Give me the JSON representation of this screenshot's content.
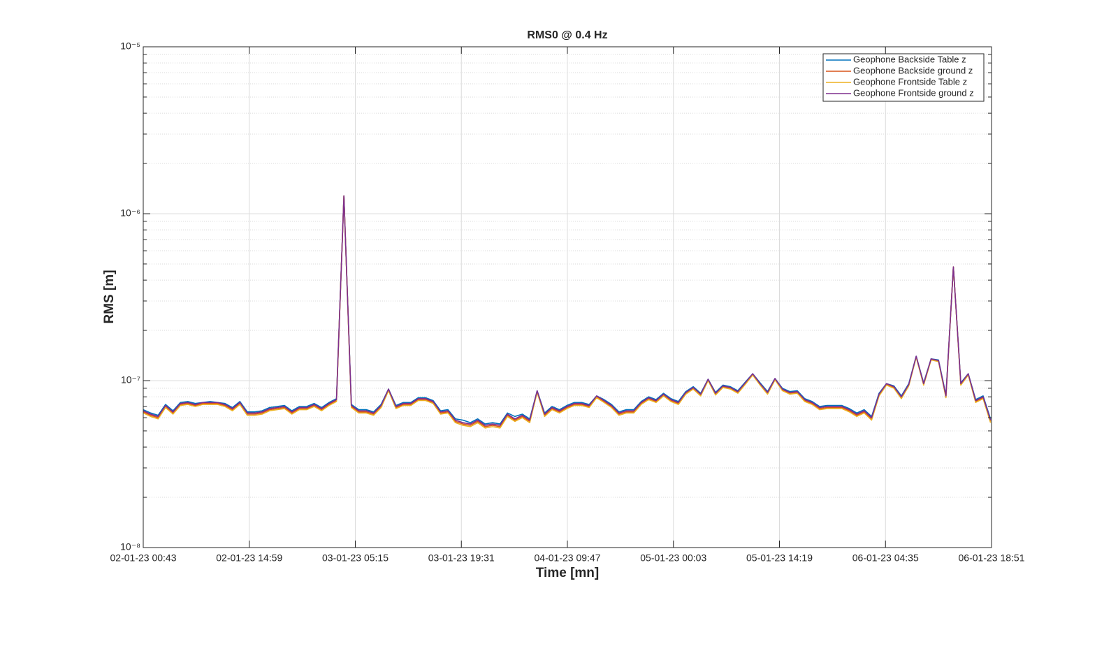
{
  "chart_data": {
    "type": "line",
    "title": "RMS0 @ 0.4 Hz",
    "xlabel": "Time [mn]",
    "ylabel": "RMS [m]",
    "log_y": true,
    "grid": true,
    "minor_grid": true,
    "legend": "northeast",
    "xlim": [
      0,
      6848
    ],
    "ylim": [
      1e-08,
      1e-05
    ],
    "xticks": [
      {
        "value": 0,
        "label": "02-01-23 00:43"
      },
      {
        "value": 856,
        "label": "02-01-23 14:59"
      },
      {
        "value": 1712,
        "label": "03-01-23 05:15"
      },
      {
        "value": 2568,
        "label": "03-01-23 19:31"
      },
      {
        "value": 3424,
        "label": "04-01-23 09:47"
      },
      {
        "value": 4280,
        "label": "05-01-23 00:03"
      },
      {
        "value": 5136,
        "label": "05-01-23 14:19"
      },
      {
        "value": 5992,
        "label": "06-01-23 04:35"
      },
      {
        "value": 6848,
        "label": "06-01-23 18:51"
      }
    ],
    "yticks": [
      {
        "value": 1e-08,
        "label": "10⁻⁸"
      },
      {
        "value": 1e-07,
        "label": "10⁻⁷"
      },
      {
        "value": 1e-06,
        "label": "10⁻⁶"
      },
      {
        "value": 1e-05,
        "label": "10⁻⁵"
      }
    ],
    "x": [
      0,
      60,
      120,
      180,
      240,
      300,
      360,
      420,
      480,
      540,
      600,
      660,
      720,
      780,
      840,
      900,
      960,
      1020,
      1080,
      1140,
      1200,
      1260,
      1320,
      1380,
      1440,
      1500,
      1560,
      1620,
      1680,
      1740,
      1800,
      1860,
      1920,
      1980,
      2040,
      2100,
      2160,
      2220,
      2280,
      2340,
      2400,
      2460,
      2520,
      2580,
      2640,
      2700,
      2760,
      2820,
      2880,
      2940,
      3000,
      3060,
      3120,
      3180,
      3240,
      3300,
      3360,
      3420,
      3480,
      3540,
      3600,
      3660,
      3720,
      3780,
      3840,
      3900,
      3960,
      4020,
      4080,
      4140,
      4200,
      4260,
      4320,
      4380,
      4440,
      4500,
      4560,
      4620,
      4680,
      4740,
      4800,
      4860,
      4920,
      4980,
      5040,
      5100,
      5160,
      5220,
      5280,
      5340,
      5400,
      5460,
      5520,
      5580,
      5640,
      5700,
      5760,
      5820,
      5880,
      5940,
      6000,
      6060,
      6120,
      6180,
      6240,
      6300,
      6360,
      6420,
      6480,
      6540,
      6600,
      6660,
      6720,
      6780,
      6840
    ],
    "series": [
      {
        "name": "Geophone Backside Table z",
        "color": "#0072BD",
        "values": [
          6.7e-08,
          6.4e-08,
          6.2e-08,
          7.2e-08,
          6.6e-08,
          7.4e-08,
          7.5e-08,
          7.3e-08,
          7.4e-08,
          7.5e-08,
          7.4e-08,
          7.3e-08,
          6.9e-08,
          7.5e-08,
          6.5e-08,
          6.5e-08,
          6.6e-08,
          6.9e-08,
          7e-08,
          7.1e-08,
          6.6e-08,
          7e-08,
          7e-08,
          7.3e-08,
          6.9e-08,
          7.4e-08,
          7.8e-08,
          1.28e-06,
          7.2e-08,
          6.7e-08,
          6.7e-08,
          6.5e-08,
          7.2e-08,
          8.9e-08,
          7.1e-08,
          7.4e-08,
          7.4e-08,
          7.9e-08,
          7.9e-08,
          7.6e-08,
          6.6e-08,
          6.7e-08,
          5.9e-08,
          5.8e-08,
          5.6e-08,
          5.9e-08,
          5.5e-08,
          5.6e-08,
          5.5e-08,
          6.4e-08,
          6.1e-08,
          6.3e-08,
          5.9e-08,
          8.7e-08,
          6.4e-08,
          7e-08,
          6.7e-08,
          7.1e-08,
          7.4e-08,
          7.4e-08,
          7.2e-08,
          8.1e-08,
          7.7e-08,
          7.2e-08,
          6.5e-08,
          6.7e-08,
          6.7e-08,
          7.5e-08,
          8e-08,
          7.7e-08,
          8.4e-08,
          7.8e-08,
          7.5e-08,
          8.6e-08,
          9.2e-08,
          8.4e-08,
          1.02e-07,
          8.5e-08,
          9.4e-08,
          9.2e-08,
          8.7e-08,
          9.8e-08,
          1.1e-07,
          9.7e-08,
          8.6e-08,
          1.03e-07,
          9e-08,
          8.6e-08,
          8.7e-08,
          7.8e-08,
          7.5e-08,
          7e-08,
          7.1e-08,
          7.1e-08,
          7.1e-08,
          6.8e-08,
          6.4e-08,
          6.7e-08,
          6.1e-08,
          8.4e-08,
          9.6e-08,
          9.3e-08,
          8.1e-08,
          9.6e-08,
          1.4e-07,
          9.7e-08,
          1.35e-07,
          1.33e-07,
          8.2e-08,
          4.8e-07,
          9.7e-08,
          1.1e-07,
          7.7e-08,
          8.1e-08,
          5.9e-08
        ]
      },
      {
        "name": "Geophone Backside ground z",
        "color": "#D95319",
        "values": [
          6.5e-08,
          6.2e-08,
          6e-08,
          7e-08,
          6.4e-08,
          7.2e-08,
          7.3e-08,
          7.1e-08,
          7.3e-08,
          7.3e-08,
          7.3e-08,
          7.1e-08,
          6.7e-08,
          7.3e-08,
          6.3e-08,
          6.3e-08,
          6.4e-08,
          6.7e-08,
          6.8e-08,
          6.9e-08,
          6.4e-08,
          6.8e-08,
          6.8e-08,
          7.1e-08,
          6.7e-08,
          7.2e-08,
          7.6e-08,
          1.28e-06,
          7e-08,
          6.5e-08,
          6.5e-08,
          6.3e-08,
          7e-08,
          8.8e-08,
          6.9e-08,
          7.2e-08,
          7.2e-08,
          7.7e-08,
          7.7e-08,
          7.4e-08,
          6.4e-08,
          6.5e-08,
          5.7e-08,
          5.5e-08,
          5.4e-08,
          5.7e-08,
          5.3e-08,
          5.4e-08,
          5.3e-08,
          6.2e-08,
          5.8e-08,
          6.1e-08,
          5.7e-08,
          8.6e-08,
          6.2e-08,
          6.8e-08,
          6.5e-08,
          6.9e-08,
          7.2e-08,
          7.2e-08,
          7e-08,
          8e-08,
          7.5e-08,
          7e-08,
          6.3e-08,
          6.5e-08,
          6.5e-08,
          7.3e-08,
          7.8e-08,
          7.5e-08,
          8.2e-08,
          7.6e-08,
          7.3e-08,
          8.4e-08,
          9e-08,
          8.2e-08,
          1.01e-07,
          8.3e-08,
          9.2e-08,
          9e-08,
          8.5e-08,
          9.6e-08,
          1.09e-07,
          9.5e-08,
          8.4e-08,
          1.02e-07,
          8.8e-08,
          8.4e-08,
          8.5e-08,
          7.6e-08,
          7.3e-08,
          6.8e-08,
          6.9e-08,
          6.9e-08,
          6.9e-08,
          6.6e-08,
          6.2e-08,
          6.5e-08,
          5.9e-08,
          8.2e-08,
          9.5e-08,
          9.1e-08,
          7.9e-08,
          9.4e-08,
          1.39e-07,
          9.5e-08,
          1.34e-07,
          1.31e-07,
          8e-08,
          4.8e-07,
          9.5e-08,
          1.09e-07,
          7.5e-08,
          7.9e-08,
          5.7e-08
        ]
      },
      {
        "name": "Geophone Frontside Table z",
        "color": "#EDB120",
        "values": [
          6.4e-08,
          6.1e-08,
          5.9e-08,
          6.9e-08,
          6.3e-08,
          7.1e-08,
          7.2e-08,
          7e-08,
          7.2e-08,
          7.2e-08,
          7.2e-08,
          7e-08,
          6.6e-08,
          7.2e-08,
          6.2e-08,
          6.2e-08,
          6.3e-08,
          6.6e-08,
          6.7e-08,
          6.8e-08,
          6.3e-08,
          6.7e-08,
          6.7e-08,
          7e-08,
          6.6e-08,
          7.1e-08,
          7.5e-08,
          1.28e-06,
          6.9e-08,
          6.4e-08,
          6.4e-08,
          6.2e-08,
          6.9e-08,
          8.7e-08,
          6.8e-08,
          7.1e-08,
          7.1e-08,
          7.6e-08,
          7.6e-08,
          7.3e-08,
          6.3e-08,
          6.4e-08,
          5.6e-08,
          5.4e-08,
          5.3e-08,
          5.6e-08,
          5.2e-08,
          5.3e-08,
          5.2e-08,
          6.1e-08,
          5.7e-08,
          6e-08,
          5.6e-08,
          8.5e-08,
          6.1e-08,
          6.7e-08,
          6.4e-08,
          6.8e-08,
          7.1e-08,
          7.1e-08,
          6.9e-08,
          7.9e-08,
          7.4e-08,
          6.9e-08,
          6.2e-08,
          6.4e-08,
          6.4e-08,
          7.2e-08,
          7.7e-08,
          7.4e-08,
          8.1e-08,
          7.5e-08,
          7.2e-08,
          8.3e-08,
          8.9e-08,
          8.1e-08,
          1e-07,
          8.2e-08,
          9.1e-08,
          8.9e-08,
          8.4e-08,
          9.5e-08,
          1.08e-07,
          9.4e-08,
          8.3e-08,
          1.01e-07,
          8.7e-08,
          8.3e-08,
          8.4e-08,
          7.5e-08,
          7.2e-08,
          6.7e-08,
          6.8e-08,
          6.8e-08,
          6.8e-08,
          6.5e-08,
          6.1e-08,
          6.4e-08,
          5.8e-08,
          8.1e-08,
          9.4e-08,
          9e-08,
          7.8e-08,
          9.3e-08,
          1.38e-07,
          9.4e-08,
          1.33e-07,
          1.3e-07,
          7.9e-08,
          4.8e-07,
          9.4e-08,
          1.08e-07,
          7.4e-08,
          7.8e-08,
          5.6e-08
        ]
      },
      {
        "name": "Geophone Frontside ground z",
        "color": "#7E2F8E",
        "values": [
          6.6e-08,
          6.3e-08,
          6.1e-08,
          7.1e-08,
          6.5e-08,
          7.3e-08,
          7.4e-08,
          7.2e-08,
          7.4e-08,
          7.4e-08,
          7.4e-08,
          7.2e-08,
          6.8e-08,
          7.4e-08,
          6.4e-08,
          6.4e-08,
          6.5e-08,
          6.8e-08,
          6.9e-08,
          7e-08,
          6.5e-08,
          6.9e-08,
          6.9e-08,
          7.2e-08,
          6.8e-08,
          7.3e-08,
          7.7e-08,
          1.28e-06,
          7.1e-08,
          6.6e-08,
          6.6e-08,
          6.4e-08,
          7.1e-08,
          8.9e-08,
          7e-08,
          7.3e-08,
          7.3e-08,
          7.8e-08,
          7.8e-08,
          7.5e-08,
          6.5e-08,
          6.6e-08,
          5.8e-08,
          5.6e-08,
          5.5e-08,
          5.8e-08,
          5.4e-08,
          5.5e-08,
          5.4e-08,
          6.3e-08,
          5.9e-08,
          6.2e-08,
          5.8e-08,
          8.7e-08,
          6.3e-08,
          6.9e-08,
          6.6e-08,
          7e-08,
          7.3e-08,
          7.3e-08,
          7.1e-08,
          8.1e-08,
          7.6e-08,
          7.1e-08,
          6.4e-08,
          6.6e-08,
          6.6e-08,
          7.4e-08,
          7.9e-08,
          7.6e-08,
          8.3e-08,
          7.7e-08,
          7.4e-08,
          8.5e-08,
          9.1e-08,
          8.3e-08,
          1.02e-07,
          8.4e-08,
          9.3e-08,
          9.1e-08,
          8.6e-08,
          9.7e-08,
          1.1e-07,
          9.6e-08,
          8.5e-08,
          1.03e-07,
          8.9e-08,
          8.5e-08,
          8.6e-08,
          7.7e-08,
          7.4e-08,
          6.9e-08,
          7e-08,
          7e-08,
          7e-08,
          6.7e-08,
          6.3e-08,
          6.6e-08,
          6e-08,
          8.3e-08,
          9.6e-08,
          9.2e-08,
          8e-08,
          9.5e-08,
          1.4e-07,
          9.6e-08,
          1.35e-07,
          1.32e-07,
          8.1e-08,
          4.8e-07,
          9.6e-08,
          1.1e-07,
          7.6e-08,
          8e-08,
          5.8e-08
        ]
      }
    ]
  }
}
